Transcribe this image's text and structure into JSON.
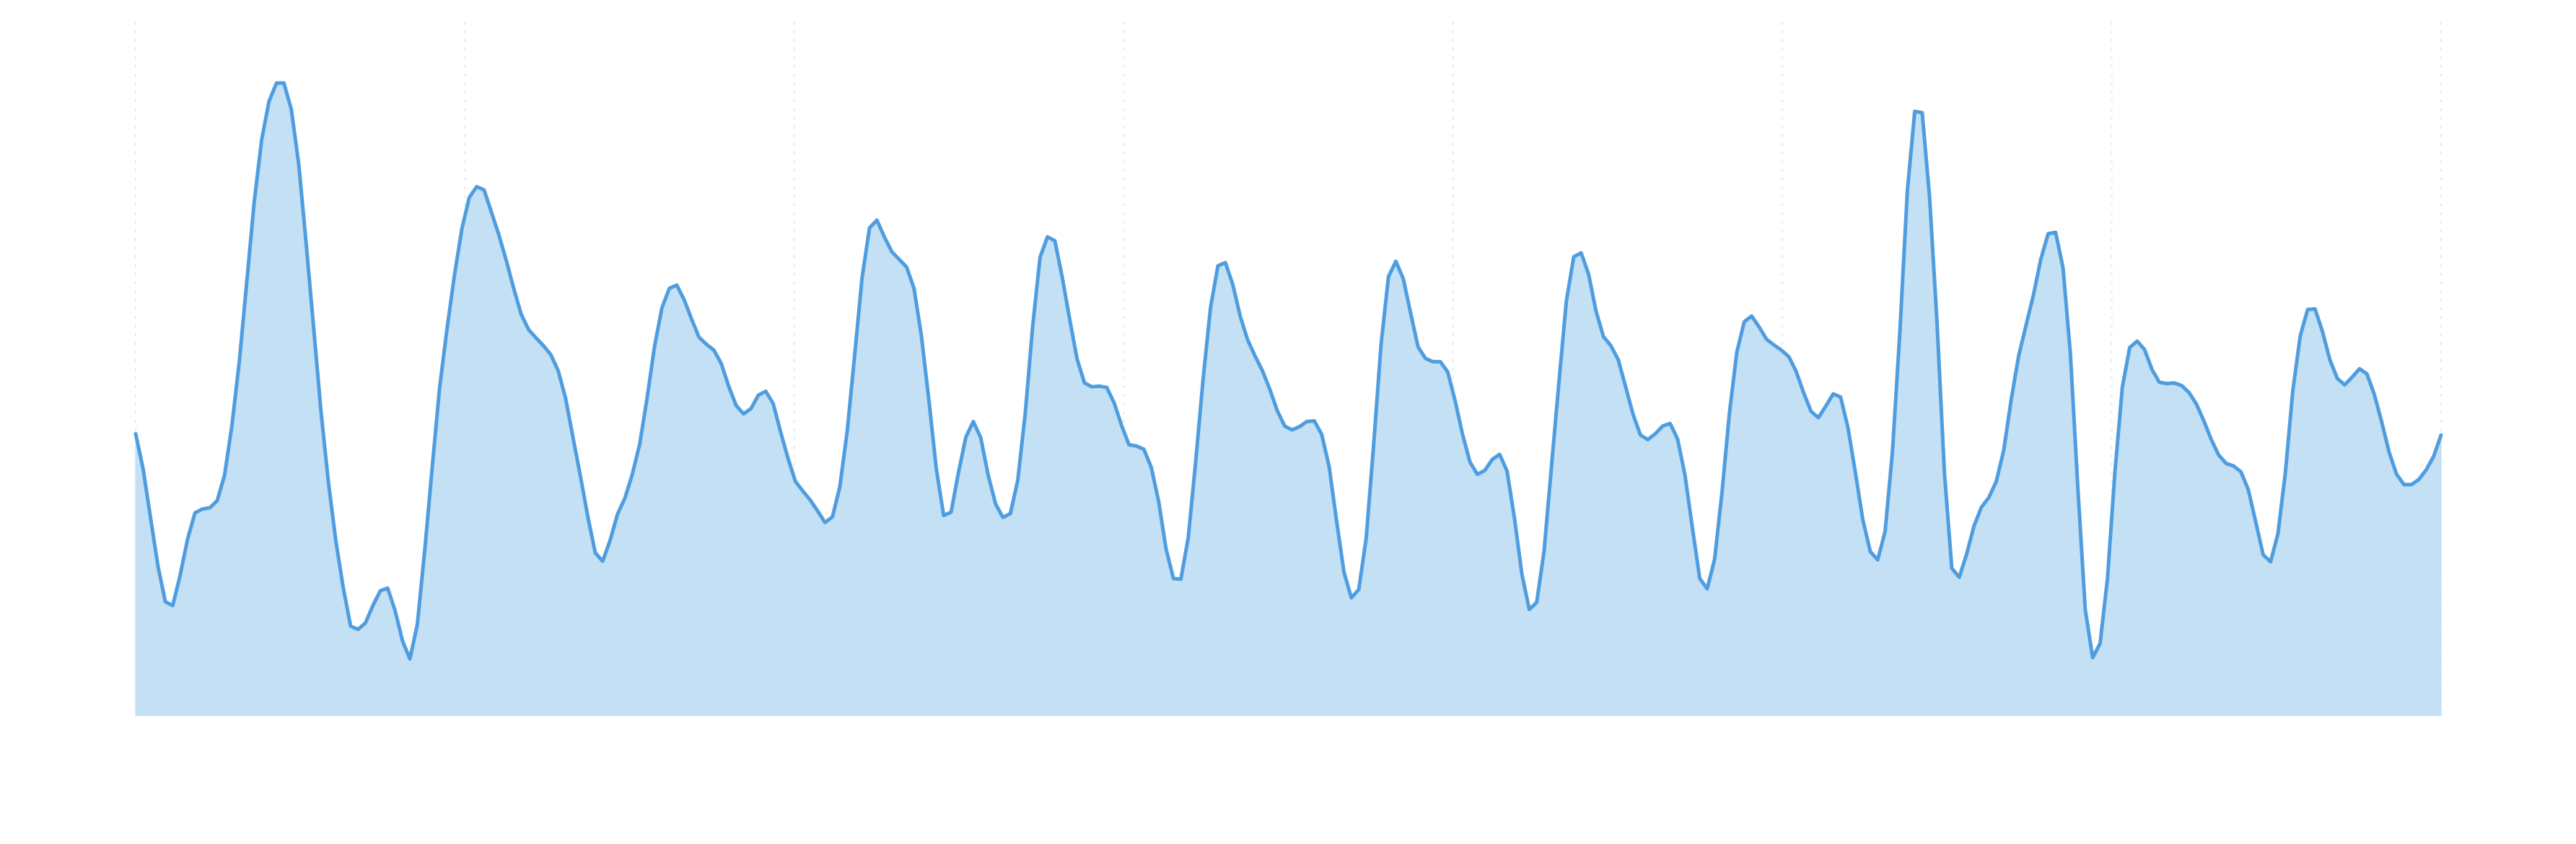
{
  "chart_data": {
    "type": "area",
    "title": "",
    "xlabel": "",
    "ylabel": "",
    "grid": "vertical-dashed",
    "legend": "none",
    "xlim": [
      0,
      250
    ],
    "ylim": [
      0,
      100
    ],
    "colors": {
      "line": "#4f9ddf",
      "fill": "#c3e0f5",
      "grid": "#e6e9ee"
    },
    "series": [
      {
        "values": [
          43.8,
          38.4,
          30.8,
          23.3,
          17.7,
          17.1,
          21.8,
          27.4,
          31.5,
          32.1,
          32.3,
          33.4,
          37.4,
          45.2,
          55.2,
          67.5,
          79.9,
          89.5,
          95.5,
          98.3,
          98.3,
          94.2,
          85.7,
          73.4,
          60.4,
          47.3,
          36.3,
          27.2,
          19.9,
          13.9,
          13.4,
          14.4,
          17.1,
          19.4,
          19.8,
          16.3,
          11.6,
          8.8,
          14.2,
          25.7,
          38.5,
          50.9,
          60.1,
          68.4,
          75.6,
          80.5,
          82.2,
          81.7,
          78.2,
          74.7,
          70.7,
          66.4,
          62.4,
          60.0,
          58.7,
          57.5,
          56.1,
          53.6,
          49.3,
          43.2,
          37.2,
          30.9,
          25.3,
          24.0,
          27.2,
          31.3,
          33.8,
          37.5,
          42.2,
          49.4,
          57.4,
          63.4,
          66.4,
          66.9,
          64.6,
          61.6,
          58.8,
          57.7,
          56.8,
          54.7,
          51.2,
          48.2,
          46.9,
          47.7,
          49.8,
          50.4,
          48.5,
          44.1,
          40.0,
          36.4,
          34.9,
          33.5,
          31.8,
          30.0,
          30.9,
          35.6,
          44.3,
          56.1,
          68.1,
          75.8,
          77.0,
          74.4,
          72.1,
          70.9,
          69.7,
          66.4,
          59.0,
          49.1,
          38.4,
          31.1,
          31.6,
          37.8,
          43.3,
          45.7,
          43.2,
          37.4,
          32.9,
          30.8,
          31.4,
          36.6,
          46.9,
          60.4,
          71.2,
          74.4,
          73.8,
          68.1,
          61.6,
          55.4,
          51.7,
          51.1,
          51.2,
          51.0,
          48.6,
          45.1,
          42.1,
          41.9,
          41.4,
          38.6,
          33.3,
          25.9,
          21.3,
          21.2,
          27.7,
          39.5,
          52.3,
          63.4,
          69.9,
          70.4,
          67.0,
          62.1,
          58.4,
          55.9,
          53.6,
          50.7,
          47.4,
          45.0,
          44.4,
          44.9,
          45.7,
          45.8,
          43.7,
          38.7,
          30.3,
          22.3,
          18.3,
          19.6,
          27.6,
          42.0,
          57.6,
          68.2,
          70.6,
          67.9,
          62.5,
          57.3,
          55.5,
          55.0,
          55.0,
          53.4,
          48.9,
          43.7,
          39.4,
          37.5,
          38.1,
          39.8,
          40.6,
          38.0,
          30.7,
          22.0,
          16.5,
          17.6,
          25.6,
          38.8,
          51.8,
          64.4,
          71.3,
          71.9,
          68.6,
          62.9,
          58.9,
          57.5,
          55.3,
          51.1,
          46.8,
          43.6,
          42.9,
          43.8,
          45.0,
          45.4,
          43.0,
          37.4,
          29.2,
          21.3,
          19.7,
          24.3,
          34.7,
          47.0,
          56.5,
          61.2,
          62.1,
          60.4,
          58.5,
          57.6,
          56.8,
          55.8,
          53.5,
          50.2,
          47.3,
          46.3,
          48.1,
          50.0,
          49.5,
          44.7,
          37.7,
          30.4,
          25.5,
          24.2,
          28.6,
          41.1,
          59.8,
          81.5,
          93.9,
          93.7,
          80.6,
          61.2,
          37.8,
          22.9,
          21.5,
          25.1,
          29.5,
          32.4,
          33.9,
          36.4,
          41.2,
          49.0,
          55.8,
          60.6,
          65.3,
          70.9,
          74.9,
          75.1,
          69.6,
          56.2,
          35.4,
          16.5,
          9.0,
          11.2,
          21.3,
          37.8,
          51.0,
          57.2,
          58.2,
          56.9,
          53.8,
          51.8,
          51.6,
          51.7,
          51.3,
          50.2,
          48.4,
          45.8,
          42.9,
          40.5,
          39.2,
          38.8,
          37.9,
          35.1,
          30.1,
          25.0,
          23.9,
          28.3,
          37.8,
          50.5,
          59.0,
          63.1,
          63.2,
          59.7,
          55.3,
          52.4,
          51.4,
          52.6,
          53.9,
          53.1,
          49.9,
          45.6,
          40.9,
          37.5,
          35.9,
          35.9,
          36.7,
          38.2,
          40.3,
          43.6
        ]
      }
    ]
  }
}
